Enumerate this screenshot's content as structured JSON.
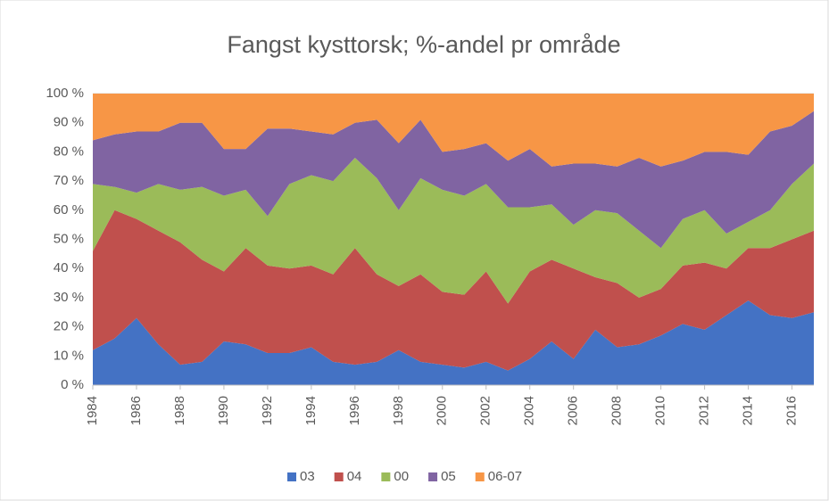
{
  "chart_data": {
    "type": "stacked_area_100",
    "title": "Fangst kysttorsk; %-andel pr område",
    "x": [
      1984,
      1985,
      1986,
      1987,
      1988,
      1989,
      1990,
      1991,
      1992,
      1993,
      1994,
      1995,
      1996,
      1997,
      1998,
      1999,
      2000,
      2001,
      2002,
      2003,
      2004,
      2005,
      2006,
      2007,
      2008,
      2009,
      2010,
      2011,
      2012,
      2013,
      2014,
      2015,
      2016,
      2017
    ],
    "xlim": [
      1984,
      2017
    ],
    "xticks": [
      1984,
      1986,
      1988,
      1990,
      1992,
      1994,
      1996,
      1998,
      2000,
      2002,
      2004,
      2006,
      2008,
      2010,
      2012,
      2014,
      2016
    ],
    "ylim": [
      0,
      100
    ],
    "yticks": [
      {
        "value": 0,
        "label": "0 %"
      },
      {
        "value": 10,
        "label": "10 %"
      },
      {
        "value": 20,
        "label": "20 %"
      },
      {
        "value": 30,
        "label": "30 %"
      },
      {
        "value": 40,
        "label": "40 %"
      },
      {
        "value": 50,
        "label": "50 %"
      },
      {
        "value": 60,
        "label": "60 %"
      },
      {
        "value": 70,
        "label": "70 %"
      },
      {
        "value": 80,
        "label": "80 %"
      },
      {
        "value": 90,
        "label": "90 %"
      },
      {
        "value": 100,
        "label": "100 %"
      }
    ],
    "grid": true,
    "legend": "bottom",
    "series": [
      {
        "name": "03",
        "color": "#4472c4",
        "values": [
          12,
          16,
          23,
          14,
          7,
          8,
          15,
          14,
          11,
          11,
          13,
          8,
          7,
          8,
          12,
          8,
          7,
          6,
          8,
          5,
          9,
          15,
          9,
          19,
          13,
          14,
          17,
          21,
          19,
          24,
          29,
          24,
          23,
          25
        ]
      },
      {
        "name": "04",
        "color": "#c0504d",
        "values": [
          34,
          44,
          34,
          39,
          42,
          35,
          24,
          33,
          30,
          29,
          28,
          30,
          40,
          30,
          22,
          30,
          25,
          25,
          31,
          23,
          30,
          28,
          31,
          18,
          22,
          16,
          16,
          20,
          23,
          16,
          18,
          23,
          27,
          28
        ]
      },
      {
        "name": "00",
        "color": "#9bbb59",
        "values": [
          23,
          8,
          9,
          16,
          18,
          25,
          26,
          20,
          17,
          29,
          31,
          32,
          31,
          33,
          26,
          33,
          35,
          34,
          30,
          33,
          22,
          19,
          15,
          23,
          24,
          23,
          14,
          16,
          18,
          12,
          9,
          13,
          19,
          23
        ]
      },
      {
        "name": "05",
        "color": "#8064a2",
        "values": [
          15,
          18,
          21,
          18,
          23,
          22,
          16,
          14,
          30,
          19,
          15,
          16,
          12,
          20,
          23,
          20,
          13,
          16,
          14,
          16,
          20,
          13,
          21,
          16,
          16,
          25,
          28,
          20,
          20,
          28,
          23,
          27,
          20,
          18
        ]
      },
      {
        "name": "06-07",
        "color": "#f79646",
        "values": [
          16,
          14,
          13,
          13,
          10,
          10,
          19,
          19,
          12,
          12,
          13,
          14,
          10,
          9,
          17,
          9,
          20,
          19,
          17,
          23,
          19,
          25,
          24,
          24,
          25,
          22,
          25,
          23,
          20,
          20,
          21,
          13,
          11,
          6
        ]
      }
    ]
  }
}
